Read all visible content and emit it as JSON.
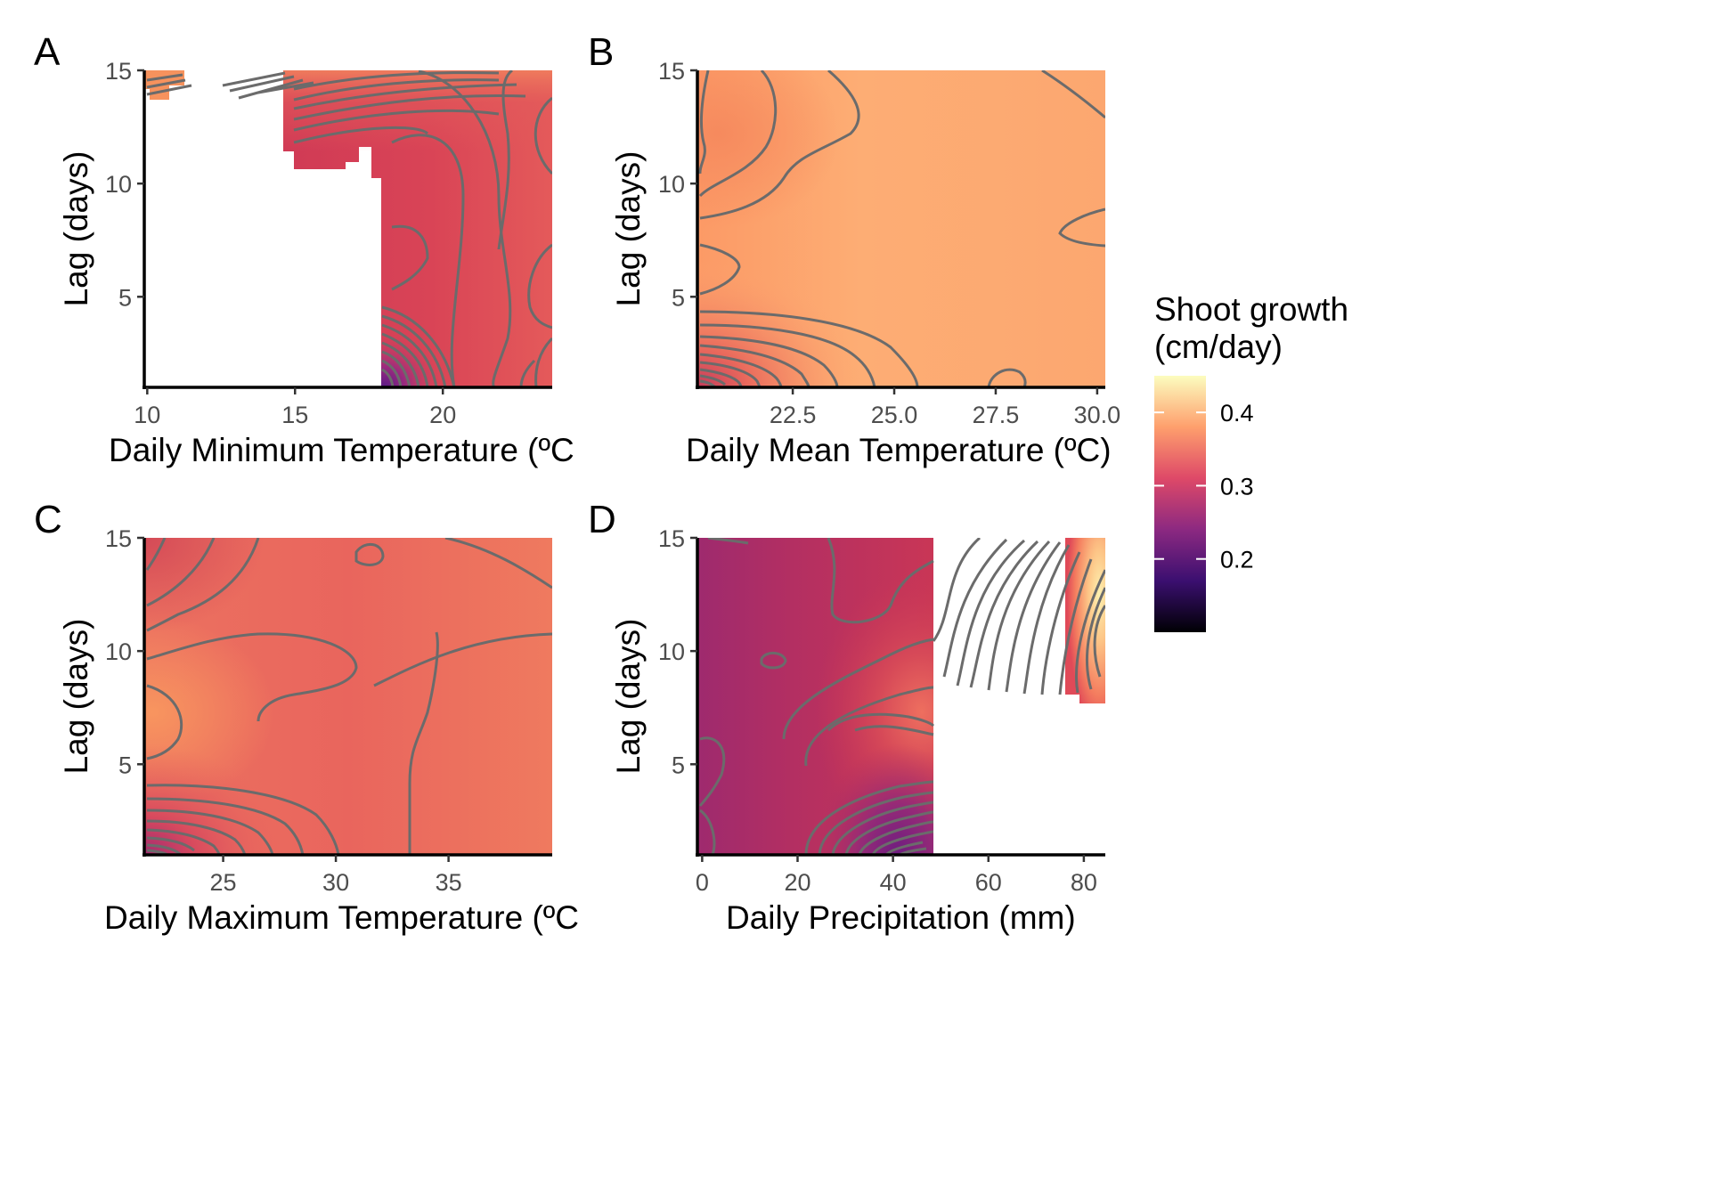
{
  "chart_data": [
    {
      "panel": "A",
      "type": "heatmap",
      "xlabel": "Daily Minimum Temperature (ºC",
      "ylabel": "Lag (days)",
      "xlim": [
        9.9,
        23.7
      ],
      "ylim": [
        1,
        15
      ],
      "xticks": [
        10,
        15,
        20
      ],
      "yticks": [
        5,
        10,
        15
      ],
      "approx_surface": [
        {
          "lag": 15,
          "temp": 10.5,
          "growth": 0.4
        },
        {
          "lag": 14,
          "temp": 16,
          "growth": 0.36
        },
        {
          "lag": 12,
          "temp": 17,
          "growth": 0.31
        },
        {
          "lag": 12,
          "temp": 20,
          "growth": 0.31
        },
        {
          "lag": 8,
          "temp": 19,
          "growth": 0.31
        },
        {
          "lag": 5,
          "temp": 22,
          "growth": 0.34
        },
        {
          "lag": 1,
          "temp": 18,
          "growth": 0.2
        },
        {
          "lag": 1,
          "temp": 23,
          "growth": 0.35
        }
      ]
    },
    {
      "panel": "B",
      "type": "heatmap",
      "xlabel": "Daily Mean Temperature (ºC)",
      "ylabel": "Lag (days)",
      "xlim": [
        20.15,
        30.2
      ],
      "ylim": [
        1,
        15
      ],
      "xticks": [
        22.5,
        25.0,
        27.5,
        30.0
      ],
      "yticks": [
        5,
        10,
        15
      ],
      "approx_surface": [
        {
          "lag": 13,
          "temp": 21,
          "growth": 0.39
        },
        {
          "lag": 12,
          "temp": 25,
          "growth": 0.42
        },
        {
          "lag": 7,
          "temp": 20.5,
          "growth": 0.41
        },
        {
          "lag": 7,
          "temp": 26,
          "growth": 0.42
        },
        {
          "lag": 1,
          "temp": 20.5,
          "growth": 0.3
        },
        {
          "lag": 1,
          "temp": 27.5,
          "growth": 0.41
        }
      ]
    },
    {
      "panel": "C",
      "type": "heatmap",
      "xlabel": "Daily Maximum Temperature (ºC",
      "ylabel": "Lag (days)",
      "xlim": [
        21.5,
        39.6
      ],
      "ylim": [
        1,
        15
      ],
      "xticks": [
        25,
        30,
        35
      ],
      "yticks": [
        5,
        10,
        15
      ],
      "approx_surface": [
        {
          "lag": 15,
          "temp": 22,
          "growth": 0.35
        },
        {
          "lag": 7,
          "temp": 22,
          "growth": 0.39
        },
        {
          "lag": 8,
          "temp": 30,
          "growth": 0.37
        },
        {
          "lag": 5,
          "temp": 38,
          "growth": 0.38
        },
        {
          "lag": 1,
          "temp": 22,
          "growth": 0.28
        }
      ]
    },
    {
      "panel": "D",
      "type": "heatmap",
      "xlabel": "Daily Precipitation (mm)",
      "ylabel": "Lag (days)",
      "xlim": [
        -1,
        84.5
      ],
      "ylim": [
        1,
        15
      ],
      "xticks": [
        0,
        20,
        40,
        60,
        80
      ],
      "yticks": [
        5,
        10,
        15
      ],
      "approx_surface": [
        {
          "lag": 14,
          "precip": 5,
          "growth": 0.31
        },
        {
          "lag": 10,
          "precip": 20,
          "growth": 0.31
        },
        {
          "lag": 8,
          "precip": 40,
          "growth": 0.35
        },
        {
          "lag": 3,
          "precip": 40,
          "growth": 0.22
        },
        {
          "lag": 12,
          "precip": 83,
          "growth": 0.45
        },
        {
          "lag": 15,
          "precip": 80,
          "growth": 0.33
        }
      ]
    }
  ],
  "legend": {
    "title_line1": "Shoot growth",
    "title_line2": "(cm/day)",
    "ticks": [
      {
        "label": "0.4",
        "value": 0.4
      },
      {
        "label": "0.3",
        "value": 0.3
      },
      {
        "label": "0.2",
        "value": 0.2
      }
    ],
    "range": [
      0.1,
      0.45
    ],
    "colors": [
      "#000004",
      "#3b0f70",
      "#8c2981",
      "#de4968",
      "#fe9f6d",
      "#fcfdbf"
    ]
  }
}
